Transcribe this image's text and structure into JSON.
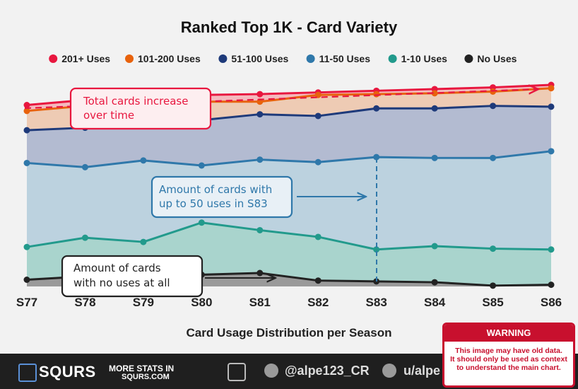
{
  "chart_data": {
    "type": "area",
    "title": "Ranked Top 1K - Card Variety",
    "xlabel": "Card Usage Distribution per Season",
    "ylabel": "",
    "x": [
      "S77",
      "S78",
      "S79",
      "S80",
      "S81",
      "S82",
      "S83",
      "S84",
      "S85",
      "S86"
    ],
    "ylim": [
      0,
      120
    ],
    "grid": true,
    "legend": "top",
    "series": [
      {
        "name": "201+ Uses",
        "color": "#e8173f",
        "values": [
          108.0,
          111.0,
          112.5,
          114.0,
          114.5,
          115.5,
          116.5,
          117.5,
          118.5,
          120.0
        ]
      },
      {
        "name": "101-200 Uses",
        "color": "#e8620c",
        "values": [
          104.5,
          107.5,
          110.0,
          110.0,
          110.0,
          114.0,
          114.5,
          115.0,
          116.0,
          118.0
        ]
      },
      {
        "name": "51-100 Uses",
        "color": "#1e3a7a",
        "values": [
          93.0,
          94.5,
          98.0,
          99.0,
          102.5,
          101.5,
          106.0,
          106.0,
          107.5,
          107.0
        ]
      },
      {
        "name": "11-50 Uses",
        "color": "#2f78aa",
        "values": [
          73.5,
          71.0,
          75.0,
          72.0,
          75.5,
          74.0,
          77.0,
          76.5,
          76.5,
          80.5
        ]
      },
      {
        "name": "1-10 Uses",
        "color": "#229a8c",
        "values": [
          23.5,
          29.0,
          26.5,
          38.0,
          33.5,
          29.5,
          22.0,
          24.0,
          22.5,
          22.0
        ]
      },
      {
        "name": "No Uses",
        "color": "#222222",
        "values": [
          4.0,
          6.0,
          4.5,
          7.0,
          8.0,
          3.5,
          3.0,
          2.5,
          0.5,
          1.0
        ]
      }
    ],
    "annotations": [
      {
        "text": "Total cards increase over time",
        "color": "#e8173f"
      },
      {
        "text": "Amount of cards with up to 50 uses in S83",
        "color": "#2f78aa"
      },
      {
        "text": "Amount of cards with no uses at all",
        "color": "#222222"
      }
    ]
  },
  "footer": {
    "brand": "SQURS",
    "brand_icon": "SQ RS",
    "promo_line1": "MORE STATS IN",
    "promo_line2": "SQURS.COM",
    "twitter": "@alpe123_CR",
    "reddit": "u/alpe"
  },
  "warning": {
    "title": "WARNING",
    "lines": [
      "This image may have old data.",
      "It should only be used as context",
      "to understand the main chart."
    ]
  }
}
